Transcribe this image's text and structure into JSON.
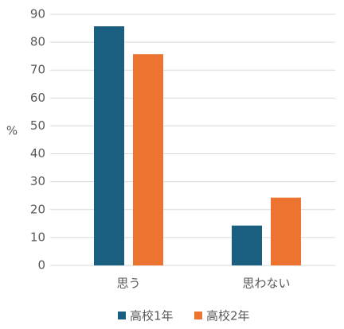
{
  "chart_data": {
    "type": "bar",
    "y_label": "%",
    "categories": [
      "思う",
      "思わない"
    ],
    "series": [
      {
        "name": "高校1年",
        "color": "#1a5f7f",
        "values": [
          85.7,
          14.3
        ]
      },
      {
        "name": "高校2年",
        "color": "#ed7330",
        "values": [
          75.7,
          24.3
        ]
      }
    ],
    "ylim": [
      0,
      90
    ],
    "yticks": [
      0,
      10,
      20,
      30,
      40,
      50,
      60,
      70,
      80,
      90
    ],
    "grid": true,
    "legend": "bottom"
  }
}
